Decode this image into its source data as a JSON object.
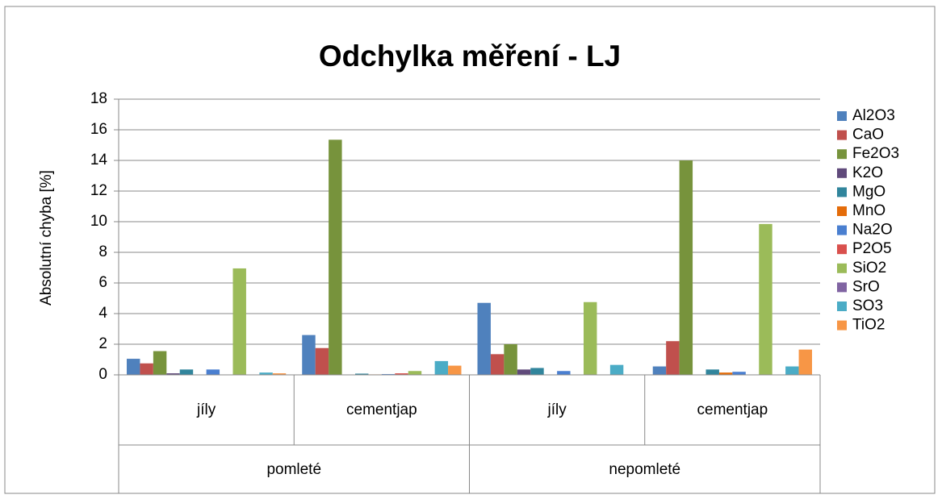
{
  "chart_data": {
    "type": "bar",
    "title": "Odchylka měření - LJ",
    "y_label": "Absolutní chyba [%]",
    "categories": [
      "jíly",
      "cementjap",
      "jíly",
      "cementjap"
    ],
    "category_groups": [
      "pomleté",
      "nepomleté"
    ],
    "ylim": [
      0,
      18
    ],
    "yticks": [
      0,
      2,
      4,
      6,
      8,
      10,
      12,
      14,
      16,
      18
    ],
    "grid": true,
    "legend": "right",
    "series": [
      {
        "name": "Al2O3",
        "color": "#4f81bd",
        "values": [
          1.05,
          2.6,
          4.7,
          0.55
        ]
      },
      {
        "name": "CaO",
        "color": "#c0504d",
        "values": [
          0.75,
          1.75,
          1.35,
          2.2
        ]
      },
      {
        "name": "Fe2O3",
        "color": "#77933c",
        "values": [
          1.55,
          15.35,
          2.0,
          14.0
        ]
      },
      {
        "name": "K2O",
        "color": "#604a7b",
        "values": [
          0.1,
          0,
          0.35,
          0
        ]
      },
      {
        "name": "MgO",
        "color": "#31859c",
        "values": [
          0.35,
          0.08,
          0.45,
          0.35
        ]
      },
      {
        "name": "MnO",
        "color": "#e46c0a",
        "values": [
          0,
          0.03,
          0,
          0.15
        ]
      },
      {
        "name": "Na2O",
        "color": "#4a7fd0",
        "values": [
          0.35,
          0.05,
          0.25,
          0.2
        ]
      },
      {
        "name": "P2O5",
        "color": "#d9504d",
        "values": [
          0,
          0.1,
          0,
          0
        ]
      },
      {
        "name": "SiO2",
        "color": "#9bbb59",
        "values": [
          6.95,
          0.25,
          4.75,
          9.85
        ]
      },
      {
        "name": "SrO",
        "color": "#8064a2",
        "values": [
          0,
          0.03,
          0,
          0
        ]
      },
      {
        "name": "SO3",
        "color": "#4bacc6",
        "values": [
          0.15,
          0.9,
          0.65,
          0.55
        ]
      },
      {
        "name": "TiO2",
        "color": "#f79646",
        "values": [
          0.1,
          0.6,
          0,
          1.65
        ]
      }
    ]
  }
}
